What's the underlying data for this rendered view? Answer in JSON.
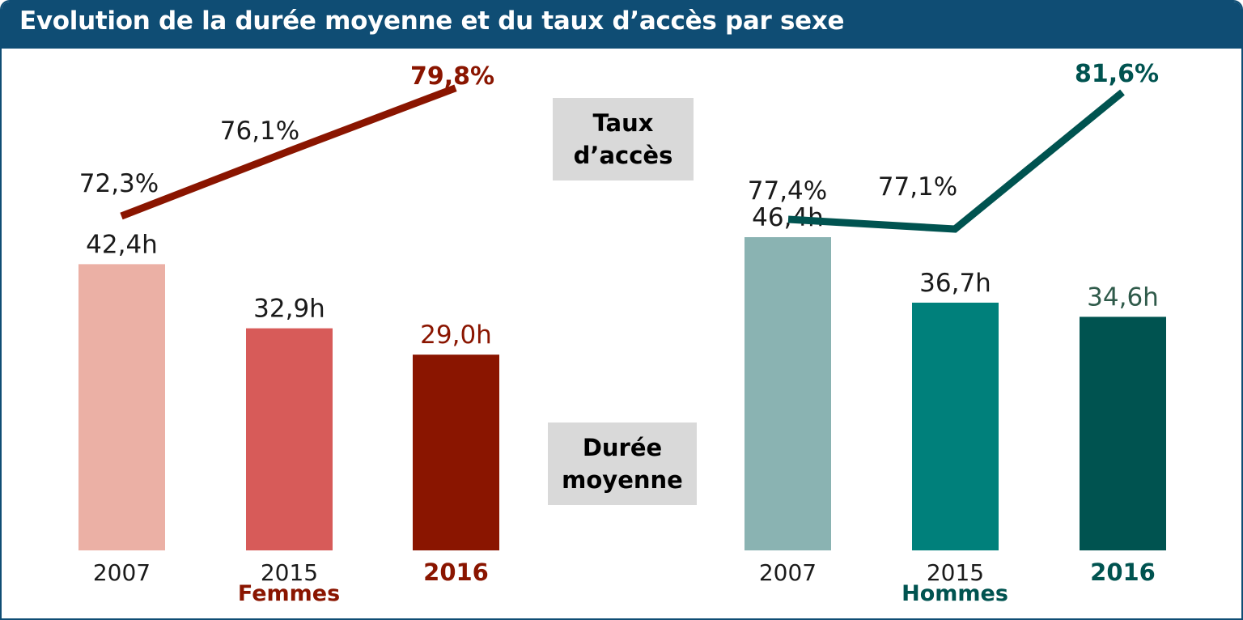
{
  "title": "Evolution de la durée moyenne et du taux d’accès par sexe",
  "legend": {
    "rate_line1": "Taux",
    "rate_line2": "d’accès",
    "duration_line1": "Durée",
    "duration_line2": "moyenne"
  },
  "colors": {
    "header": "#0f4d74",
    "femmes_2007": "#ebb0a5",
    "femmes_2015": "#d75b59",
    "femmes_2016": "#8a1500",
    "hommes_2007": "#8ab3b2",
    "hommes_2015": "#00807b",
    "hommes_2016": "#005350",
    "legend_bg": "#d9d9d9"
  },
  "chart_data": [
    {
      "type": "bar",
      "group": "Femmes",
      "categories": [
        "2007",
        "2015",
        "2016"
      ],
      "bar_series": {
        "values": [
          42.4,
          32.9,
          29.0
        ],
        "labels": [
          "42,4h",
          "32,9h",
          "29,0h"
        ]
      },
      "line_series": {
        "values": [
          72.3,
          76.1,
          79.8
        ],
        "labels": [
          "72,3%",
          "76,1%",
          "79,8%"
        ]
      }
    },
    {
      "type": "bar",
      "group": "Hommes",
      "categories": [
        "2007",
        "2015",
        "2016"
      ],
      "bar_series": {
        "values": [
          46.4,
          36.7,
          34.6
        ],
        "labels": [
          "46,4h",
          "36,7h",
          "34,6h"
        ]
      },
      "line_series": {
        "values": [
          77.4,
          77.1,
          81.6
        ],
        "labels": [
          "77,4%",
          "77,1%",
          "81,6%"
        ]
      }
    }
  ]
}
